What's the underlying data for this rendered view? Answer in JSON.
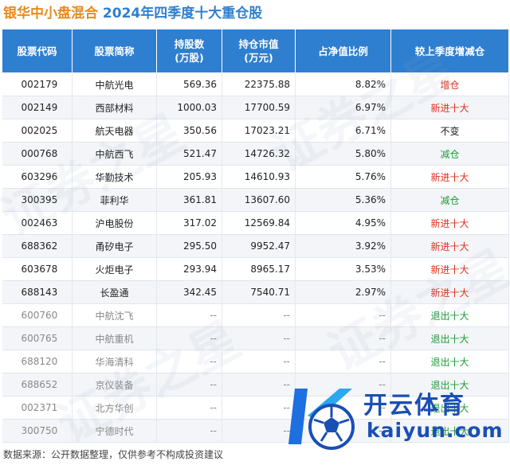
{
  "header": {
    "fund_name": "银华中小盘混合",
    "subtitle": "2024年四季度十大重仓股"
  },
  "columns": [
    {
      "label": "股票代码"
    },
    {
      "label": "股票简称"
    },
    {
      "label": "持股数",
      "sub": "(万股)"
    },
    {
      "label": "持仓市值",
      "sub": "(万元)"
    },
    {
      "label": "占净值比例"
    },
    {
      "label": "较上季度增减仓"
    }
  ],
  "rows": [
    {
      "code": "002179",
      "name": "中航光电",
      "shares": "569.36",
      "value": "22375.88",
      "ratio": "8.82%",
      "change": "增仓",
      "color": "#e0301e"
    },
    {
      "code": "002149",
      "name": "西部材料",
      "shares": "1000.03",
      "value": "17700.59",
      "ratio": "6.97%",
      "change": "新进十大",
      "color": "#e0301e"
    },
    {
      "code": "002025",
      "name": "航天电器",
      "shares": "350.56",
      "value": "17023.21",
      "ratio": "6.71%",
      "change": "不变",
      "color": "#222222"
    },
    {
      "code": "000768",
      "name": "中航西飞",
      "shares": "521.47",
      "value": "14726.32",
      "ratio": "5.80%",
      "change": "减仓",
      "color": "#1f9a3a"
    },
    {
      "code": "603296",
      "name": "华勤技术",
      "shares": "205.93",
      "value": "14610.93",
      "ratio": "5.76%",
      "change": "新进十大",
      "color": "#e0301e"
    },
    {
      "code": "300395",
      "name": "菲利华",
      "shares": "361.81",
      "value": "13607.60",
      "ratio": "5.36%",
      "change": "减仓",
      "color": "#1f9a3a"
    },
    {
      "code": "002463",
      "name": "沪电股份",
      "shares": "317.02",
      "value": "12569.84",
      "ratio": "4.95%",
      "change": "新进十大",
      "color": "#e0301e"
    },
    {
      "code": "688362",
      "name": "甬矽电子",
      "shares": "295.50",
      "value": "9952.47",
      "ratio": "3.92%",
      "change": "新进十大",
      "color": "#e0301e"
    },
    {
      "code": "603678",
      "name": "火炬电子",
      "shares": "293.94",
      "value": "8965.17",
      "ratio": "3.53%",
      "change": "新进十大",
      "color": "#e0301e"
    },
    {
      "code": "688143",
      "name": "长盈通",
      "shares": "342.45",
      "value": "7540.71",
      "ratio": "2.97%",
      "change": "新进十大",
      "color": "#e0301e"
    },
    {
      "code": "600760",
      "name": "中航沈飞",
      "shares": "--",
      "value": "--",
      "ratio": "--",
      "change": "退出十大",
      "color": "#1f9a3a",
      "exited": true
    },
    {
      "code": "600765",
      "name": "中航重机",
      "shares": "--",
      "value": "--",
      "ratio": "--",
      "change": "退出十大",
      "color": "#1f9a3a",
      "exited": true
    },
    {
      "code": "688120",
      "name": "华海清科",
      "shares": "--",
      "value": "--",
      "ratio": "--",
      "change": "退出十大",
      "color": "#1f9a3a",
      "exited": true
    },
    {
      "code": "688652",
      "name": "京仪装备",
      "shares": "--",
      "value": "--",
      "ratio": "--",
      "change": "退出十大",
      "color": "#1f9a3a",
      "exited": true
    },
    {
      "code": "002371",
      "name": "北方华创",
      "shares": "--",
      "value": "--",
      "ratio": "--",
      "change": "退出十大",
      "color": "#1f9a3a",
      "exited": true
    },
    {
      "code": "300750",
      "name": "宁德时代",
      "shares": "--",
      "value": "--",
      "ratio": "--",
      "change": "退出十大",
      "color": "#1f9a3a",
      "exited": true
    }
  ],
  "footer": {
    "source": "数据来源：公开数据整理，仅供参考不构成投资建议"
  },
  "watermark": {
    "text": "证券之星"
  },
  "logo": {
    "name": "开云体育",
    "domain": "kaiyun.com"
  }
}
